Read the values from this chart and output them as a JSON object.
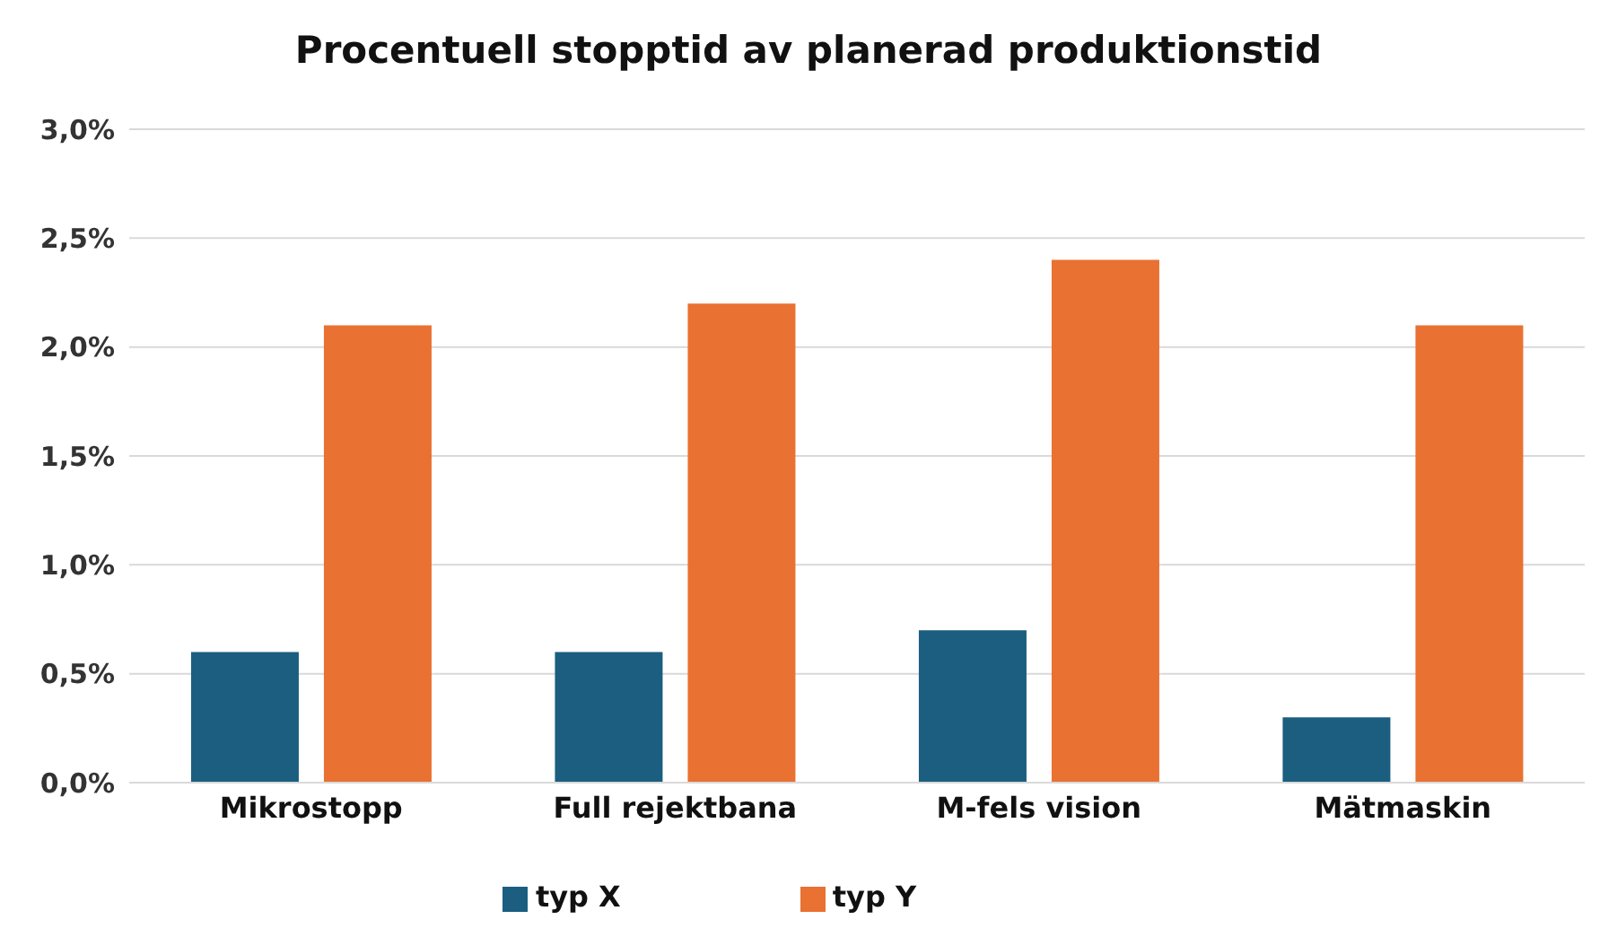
{
  "chart_data": {
    "type": "bar",
    "title": "Procentuell stopptid av planerad produktionstid",
    "categories": [
      "Mikrostopp",
      "Full rejektbana",
      "M-fels vision",
      "Mätmaskin"
    ],
    "series": [
      {
        "name": "typ X",
        "color": "#1b5e7f",
        "values": [
          0.6,
          0.6,
          0.7,
          0.3
        ]
      },
      {
        "name": "typ Y",
        "color": "#e97132",
        "values": [
          2.1,
          2.2,
          2.4,
          2.1
        ]
      }
    ],
    "ylim": [
      0,
      3
    ],
    "yticks": [
      {
        "value": 0,
        "label": "0,0%"
      },
      {
        "value": 0.5,
        "label": "0,5%"
      },
      {
        "value": 1,
        "label": "1,0%"
      },
      {
        "value": 1.5,
        "label": "1,5%"
      },
      {
        "value": 2,
        "label": "2,0%"
      },
      {
        "value": 2.5,
        "label": "2,5%"
      },
      {
        "value": 3,
        "label": "3,0%"
      }
    ],
    "grid": "y",
    "legend": "bottom"
  }
}
